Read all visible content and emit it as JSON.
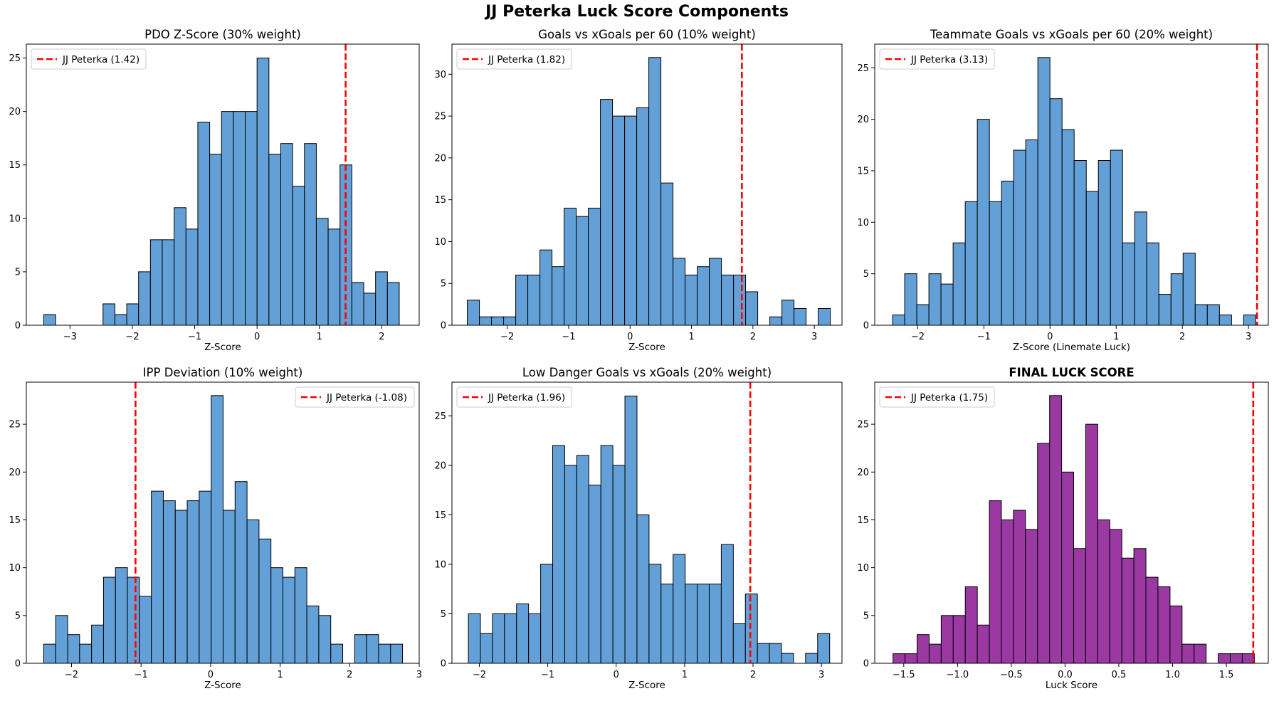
{
  "figure": {
    "title": "JJ Peterka Luck Score Components"
  },
  "colors": {
    "bar": "#5b9bd5",
    "bar_alt": "#952e9d",
    "edge": "#000000",
    "marker": "#ff0000"
  },
  "chart_data": [
    {
      "type": "bar",
      "title": "PDO Z-Score (30% weight)",
      "xlabel": "Z-Score",
      "ylabel": "",
      "xlim": [
        -3.7,
        2.6
      ],
      "ylim": [
        0,
        26.3
      ],
      "xticks": [
        -3,
        -2,
        -1,
        0,
        1,
        2
      ],
      "yticks": [
        0,
        5,
        10,
        15,
        20,
        25
      ],
      "bin_start": -3.42,
      "bin_width": 0.19,
      "values": [
        1,
        0,
        0,
        0,
        0,
        2,
        1,
        2,
        5,
        8,
        8,
        11,
        9,
        19,
        16,
        20,
        20,
        20,
        25,
        16,
        17,
        13,
        17,
        10,
        9,
        15,
        4,
        3,
        5,
        4
      ],
      "marker": {
        "value": 1.42,
        "label": "JJ Peterka (1.42)"
      },
      "legend_position": "upper left",
      "bar_color": "#5b9bd5"
    },
    {
      "type": "bar",
      "title": "Goals vs xGoals per 60 (10% weight)",
      "xlabel": "Z-Score",
      "ylabel": "",
      "xlim": [
        -2.9,
        3.45
      ],
      "ylim": [
        0,
        33.6
      ],
      "xticks": [
        -2,
        -1,
        0,
        1,
        2,
        3
      ],
      "yticks": [
        0,
        5,
        10,
        15,
        20,
        25,
        30
      ],
      "bin_start": -2.65,
      "bin_width": 0.197,
      "values": [
        3,
        1,
        1,
        1,
        6,
        6,
        9,
        7,
        14,
        13,
        14,
        27,
        25,
        25,
        26,
        32,
        17,
        8,
        6,
        7,
        8,
        6,
        6,
        4,
        0,
        1,
        3,
        2,
        0,
        2
      ],
      "marker": {
        "value": 1.82,
        "label": "JJ Peterka (1.82)"
      },
      "legend_position": "upper left",
      "bar_color": "#5b9bd5"
    },
    {
      "type": "bar",
      "title": "Teammate Goals vs xGoals per 60 (20% weight)",
      "xlabel": "Z-Score (Linemate Luck)",
      "ylabel": "",
      "xlim": [
        -2.65,
        3.3
      ],
      "ylim": [
        0,
        27.3
      ],
      "xticks": [
        -2,
        -1,
        0,
        1,
        2,
        3
      ],
      "yticks": [
        0,
        5,
        10,
        15,
        20,
        25
      ],
      "bin_start": -2.38,
      "bin_width": 0.183,
      "values": [
        1,
        5,
        2,
        5,
        4,
        8,
        12,
        20,
        12,
        14,
        17,
        18,
        26,
        22,
        19,
        16,
        13,
        16,
        17,
        8,
        11,
        8,
        3,
        5,
        7,
        2,
        2,
        1,
        0,
        1
      ],
      "marker": {
        "value": 3.13,
        "label": "JJ Peterka (3.13)"
      },
      "legend_position": "upper left",
      "bar_color": "#5b9bd5"
    },
    {
      "type": "bar",
      "title": "IPP Deviation (10% weight)",
      "xlabel": "Z-Score",
      "ylabel": "",
      "xlim": [
        -2.65,
        3.0
      ],
      "ylim": [
        0,
        29.4
      ],
      "xticks": [
        -2,
        -1,
        0,
        1,
        2,
        3
      ],
      "yticks": [
        0,
        5,
        10,
        15,
        20,
        25
      ],
      "bin_start": -2.4,
      "bin_width": 0.172,
      "values": [
        2,
        5,
        3,
        2,
        4,
        9,
        10,
        9,
        7,
        18,
        17,
        16,
        17,
        18,
        28,
        16,
        19,
        15,
        13,
        10,
        9,
        10,
        6,
        5,
        2,
        0,
        3,
        3,
        2,
        2
      ],
      "marker": {
        "value": -1.08,
        "label": "JJ Peterka (-1.08)"
      },
      "legend_position": "upper right",
      "bar_color": "#5b9bd5"
    },
    {
      "type": "bar",
      "title": "Low Danger Goals vs xGoals (20% weight)",
      "xlabel": "Z-Score",
      "ylabel": "",
      "xlim": [
        -2.4,
        3.3
      ],
      "ylim": [
        0,
        28.4
      ],
      "xticks": [
        -2,
        -1,
        0,
        1,
        2,
        3
      ],
      "yticks": [
        0,
        5,
        10,
        15,
        20,
        25
      ],
      "bin_start": -2.16,
      "bin_width": 0.176,
      "values": [
        5,
        3,
        5,
        5,
        6,
        5,
        10,
        22,
        20,
        21,
        18,
        22,
        20,
        27,
        15,
        10,
        8,
        11,
        8,
        8,
        8,
        12,
        4,
        7,
        2,
        2,
        1,
        0,
        1,
        3
      ],
      "marker": {
        "value": 1.96,
        "label": "JJ Peterka (1.96)"
      },
      "legend_position": "upper left",
      "bar_color": "#5b9bd5"
    },
    {
      "type": "bar",
      "title": "FINAL LUCK SCORE",
      "title_bold": true,
      "xlabel": "Luck Score",
      "ylabel": "",
      "xlim": [
        -1.77,
        1.89
      ],
      "ylim": [
        0,
        29.4
      ],
      "xticks": [
        -1.5,
        -1.0,
        -0.5,
        0.0,
        0.5,
        1.0,
        1.5
      ],
      "xtick_labels": [
        "−1.5",
        "−1.0",
        "−0.5",
        "0.0",
        "0.5",
        "1.0",
        "1.5"
      ],
      "yticks": [
        0,
        5,
        10,
        15,
        20,
        25
      ],
      "bin_start": -1.6,
      "bin_width": 0.112,
      "values": [
        1,
        1,
        3,
        2,
        5,
        5,
        8,
        4,
        17,
        15,
        16,
        14,
        23,
        28,
        20,
        12,
        25,
        15,
        14,
        11,
        12,
        9,
        8,
        6,
        2,
        2,
        0,
        1,
        1,
        1
      ],
      "marker": {
        "value": 1.75,
        "label": "JJ Peterka (1.75)"
      },
      "legend_position": "upper left",
      "bar_color": "#952e9d"
    }
  ]
}
